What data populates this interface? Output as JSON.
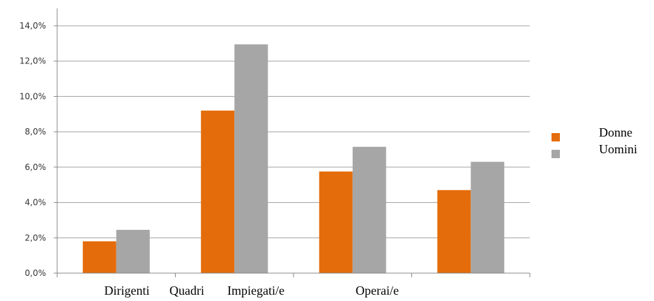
{
  "chart_data": {
    "type": "bar",
    "categories": [
      "Dirigenti",
      "Quadri",
      "Impiegati/e",
      "Operai/e"
    ],
    "x_axis_printed_labels": [
      "Dirigenti",
      "Quadri",
      "Impiegati/e",
      "Operai/e"
    ],
    "bar_groups": 4,
    "series": [
      {
        "name": "Donne",
        "color": "#E46C0A",
        "values": [
          1.8,
          9.2,
          5.75,
          4.7
        ]
      },
      {
        "name": "Uomini",
        "color": "#A6A6A6",
        "values": [
          2.45,
          12.95,
          7.15,
          6.3
        ]
      }
    ],
    "yticks": [
      "0,0%",
      "2,0%",
      "4,0%",
      "6,0%",
      "8,0%",
      "10,0%",
      "12,0%",
      "14,0%"
    ],
    "ylim": [
      0,
      14
    ],
    "grid": true,
    "legend_position": "right",
    "title": "",
    "xlabel": "",
    "ylabel": ""
  }
}
